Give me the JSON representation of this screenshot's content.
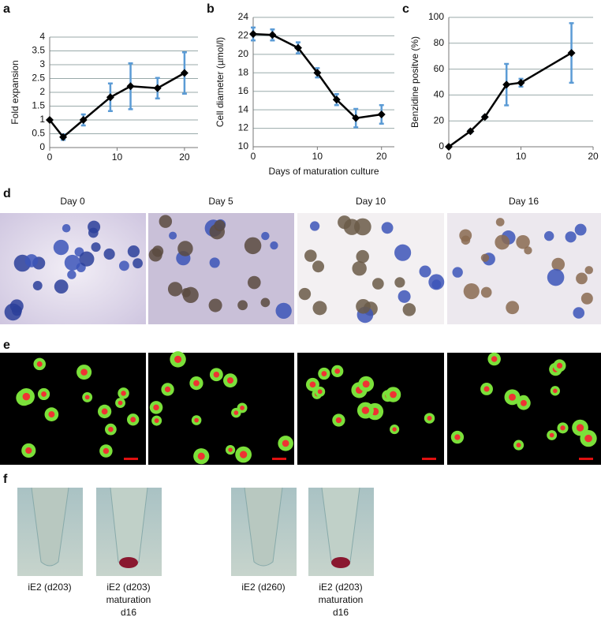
{
  "chart_data": [
    {
      "type": "line",
      "panel": "a",
      "ylabel": "Fold expansion",
      "x": [
        0,
        2,
        5,
        9,
        12,
        16,
        20
      ],
      "values": [
        1,
        0.38,
        1.0,
        1.82,
        2.22,
        2.15,
        2.7
      ],
      "errors": [
        0,
        0.1,
        0.2,
        0.5,
        0.83,
        0.37,
        0.75
      ],
      "xlim": [
        0,
        22
      ],
      "xticks": [
        0,
        10,
        20
      ],
      "ylim": [
        0,
        4
      ],
      "yticks": [
        0,
        0.5,
        1,
        1.5,
        2,
        2.5,
        3,
        3.5,
        4
      ],
      "grid": true,
      "color": "#000000",
      "error_color": "#5b9bd5"
    },
    {
      "type": "line",
      "panel": "b",
      "ylabel": "Cell diameter (µmol/l)",
      "xlabel": "Days of maturation culture",
      "x": [
        0,
        3,
        7,
        10,
        13,
        16,
        20
      ],
      "values": [
        22.2,
        22.1,
        20.7,
        18.0,
        15.1,
        13.1,
        13.5
      ],
      "errors": [
        0.7,
        0.6,
        0.6,
        0.5,
        0.6,
        1.0,
        1.0
      ],
      "xlim": [
        0,
        22
      ],
      "xticks": [
        0,
        10,
        20
      ],
      "ylim": [
        10,
        24
      ],
      "yticks": [
        10,
        12,
        14,
        16,
        18,
        20,
        22,
        24
      ],
      "grid": true,
      "color": "#000000",
      "error_color": "#5b9bd5"
    },
    {
      "type": "line",
      "panel": "c",
      "ylabel": "Benzidine positve (%)",
      "x": [
        0,
        3,
        5,
        8,
        10,
        17
      ],
      "values": [
        0,
        12,
        23,
        48,
        49.5,
        72.5
      ],
      "errors": [
        0,
        1,
        1,
        16,
        3,
        23
      ],
      "xlim": [
        0,
        20
      ],
      "xticks": [
        0,
        10,
        20
      ],
      "ylim": [
        0,
        100
      ],
      "yticks": [
        0,
        20,
        40,
        60,
        80,
        100
      ],
      "grid": true,
      "color": "#000000",
      "error_color": "#5b9bd5"
    }
  ],
  "panel_d": {
    "label": "d",
    "days": [
      "Day 0",
      "Day 5",
      "Day 10",
      "Day 16"
    ]
  },
  "panel_e": {
    "label": "e"
  },
  "panel_f": {
    "label": "f",
    "captions": [
      [
        "iE2 (d203)"
      ],
      [
        "iE2 (d203)",
        "maturation",
        "d16"
      ],
      [
        "iE2 (d260)"
      ],
      [
        "iE2 (d203)",
        "maturation",
        "d16"
      ]
    ]
  }
}
